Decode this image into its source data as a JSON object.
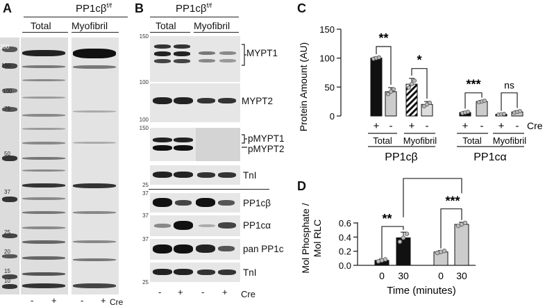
{
  "panels": {
    "a": "A",
    "b": "B",
    "c": "C",
    "d": "D"
  },
  "gel_a": {
    "header": "PP1cβ",
    "header_sup": "f/f",
    "group_total": "Total",
    "group_myofibril": "Myofibril",
    "mw_markers": [
      "250",
      "150",
      "100",
      "75",
      "50",
      "37",
      "25",
      "20",
      "15",
      "10"
    ],
    "lanes": [
      "-",
      "+",
      "-",
      "+"
    ],
    "cre": "Cre"
  },
  "blots_b": {
    "header": "PP1cβ",
    "header_sup": "f/f",
    "group_total": "Total",
    "group_myofibril": "Myofibril",
    "mw": [
      "150",
      "100",
      "100",
      "150",
      "25",
      "37",
      "37",
      "37",
      "25"
    ],
    "proteins": [
      "MYPT1",
      "MYPT2",
      "pMYPT1",
      "pMYPT2",
      "TnI",
      "PP1cβ",
      "PP1cα",
      "pan PP1c",
      "TnI"
    ],
    "lanes": [
      "-",
      "+",
      "-",
      "+"
    ],
    "cre": "Cre"
  },
  "chart_c": {
    "ylabel": "Protein Amount (AU)",
    "yticks": [
      "0",
      "50",
      "100",
      "150"
    ],
    "cre_row": [
      "+",
      "-",
      "+",
      "-",
      "+",
      "-",
      "+",
      "-"
    ],
    "cre_label": "Cre",
    "group_labels": [
      "Total",
      "Myofibril",
      "Total",
      "Myofibril"
    ],
    "protein_labels": [
      "PP1cβ",
      "PP1cα"
    ],
    "significance": [
      "**",
      "*",
      "***",
      "ns"
    ]
  },
  "chart_d": {
    "ylabel_line1": "Mol Phosphate /",
    "ylabel_line2": "Mol RLC",
    "yticks": [
      "0.0",
      "0.2",
      "0.4",
      "0.6"
    ],
    "xticks": [
      "0",
      "30",
      "0",
      "30"
    ],
    "xlabel": "Time (minutes)",
    "significance": [
      "**",
      "***",
      "*"
    ]
  },
  "chart_data": [
    {
      "type": "bar",
      "ylim": [
        0,
        150
      ],
      "categories": [
        "PP1cβ Total +",
        "PP1cβ Total -",
        "PP1cβ Myofibril +",
        "PP1cβ Myofibril -",
        "PP1cα Total +",
        "PP1cα Total -",
        "PP1cα Myofibril +",
        "PP1cα Myofibril -"
      ],
      "values": [
        100,
        42,
        55,
        20,
        6,
        25,
        3,
        7
      ],
      "errors": [
        2,
        7,
        10,
        5,
        2,
        2,
        1,
        2
      ],
      "colors": [
        "#111111",
        "#cccccc",
        "hatched",
        "#dddddd",
        "#111111",
        "#cccccc",
        "#111111",
        "#cccccc"
      ]
    },
    {
      "type": "bar",
      "ylim": [
        0,
        0.6
      ],
      "categories": [
        "0",
        "30",
        "0",
        "30"
      ],
      "values": [
        0.07,
        0.39,
        0.19,
        0.58
      ],
      "errors": [
        0.02,
        0.08,
        0.02,
        0.03
      ],
      "colors": [
        "#111111",
        "#111111",
        "#cccccc",
        "#cccccc"
      ]
    }
  ]
}
